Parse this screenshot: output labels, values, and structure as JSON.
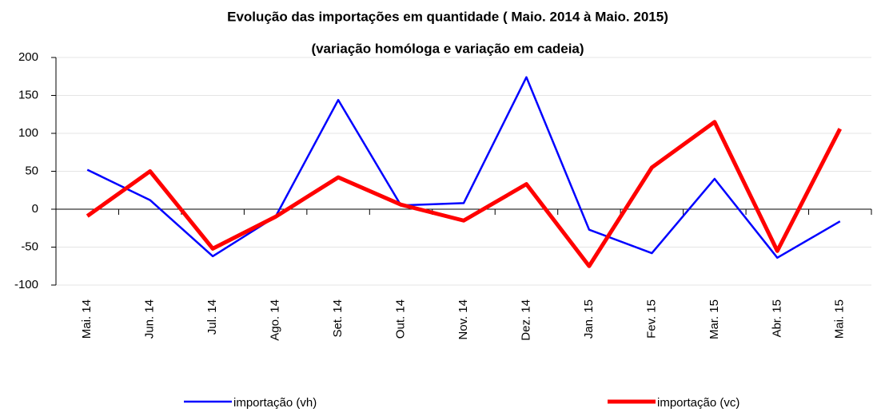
{
  "chart_data": {
    "type": "line",
    "title": "Evolução das importações em quantidade ( Maio. 2014 à Maio. 2015)",
    "subtitle": "(variação homóloga e variação em cadeia)",
    "categories": [
      "Mai. 14",
      "Jun. 14",
      "Jul. 14",
      "Ago. 14",
      "Set. 14",
      "Out. 14",
      "Nov. 14",
      "Dez. 14",
      "Jan. 15",
      "Fev. 15",
      "Mar. 15",
      "Abr. 15",
      "Mai. 15"
    ],
    "series": [
      {
        "name": "importação (vh)",
        "color": "#0000ff",
        "values": [
          52,
          12,
          -62,
          -10,
          144,
          5,
          8,
          174,
          -27,
          -58,
          40,
          -64,
          -16
        ]
      },
      {
        "name": "importação (vc)",
        "color": "#ff0000",
        "values": [
          -9,
          50,
          -52,
          -10,
          42,
          6,
          -15,
          33,
          -75,
          55,
          115,
          -55,
          106
        ]
      }
    ],
    "ylim": [
      -100,
      200
    ],
    "yticks": [
      -100,
      -50,
      0,
      50,
      100,
      150,
      200
    ],
    "grid": true
  }
}
